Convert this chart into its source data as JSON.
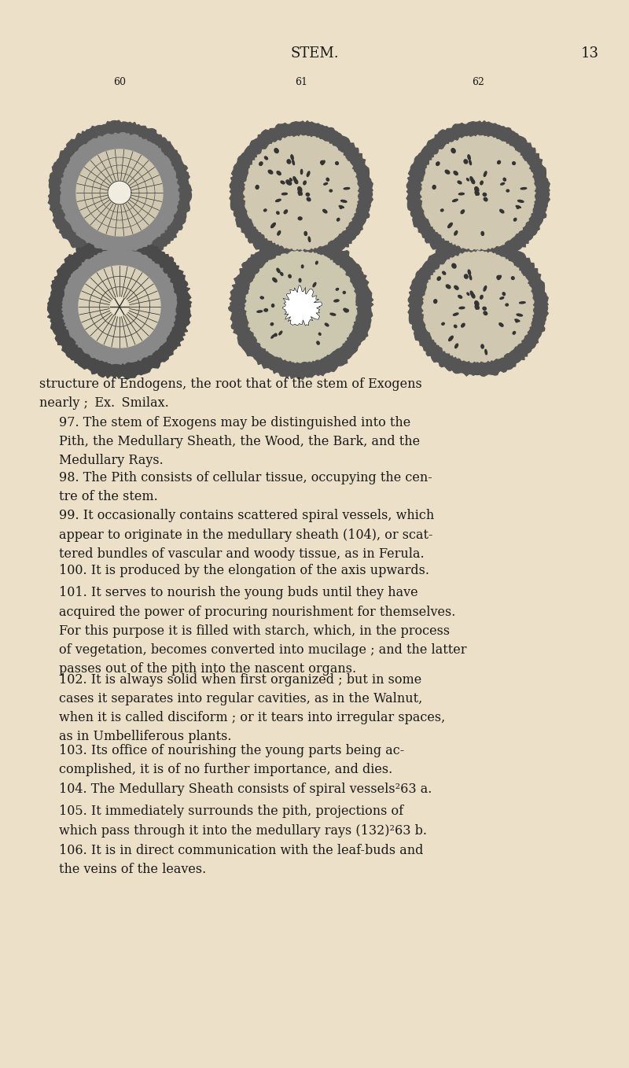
{
  "bg_color": "#EDE0C8",
  "page_title": "STEM.",
  "page_number": "13",
  "title_fontsize": 13,
  "fig_labels": [
    "60",
    "61",
    "62"
  ],
  "text_color": "#1a1a1a",
  "body_text": [
    {
      "indent": false,
      "text": "structure of Endogens, the root that of the stem of Exogens\nnearly ; Ex. Smilax."
    },
    {
      "indent": true,
      "text": "97. The stem of Exogens may be distinguished into the\nPith, the Medullary Sheath, the Wood, the Bark, and the\nMedullary Rays."
    },
    {
      "indent": true,
      "text": "98. The Pith consists of cellular tissue, occupying the cen-\ntre of the stem."
    },
    {
      "indent": true,
      "text": "99. It occasionally contains scattered spiral vessels, which\nappear to originate in the medullary sheath (104), or scat-\ntered bundles of vascular and woody tissue, as in Ferula."
    },
    {
      "indent": true,
      "text": "100. It is produced by the elongation of the axis upwards."
    },
    {
      "indent": true,
      "text": "101. It serves to nourish the young buds until they have\nacquired the power of procuring nourishment for themselves.\nFor this purpose it is filled with starch, which, in the process\nof vegetation, becomes converted into mucilage ; and the latter\npasses out of the pith into the nascent organs."
    },
    {
      "indent": true,
      "text": "102. It is always solid when first organized ; but in some\ncases it separates into regular cavities, as in the Walnut,\nwhen it is called disciform ; or it tears into irregular spaces,\nas in Umbelliferous plants."
    },
    {
      "indent": true,
      "text": "103. Its office of nourishing the young parts being ac-\ncomplished, it is of no further importance, and dies."
    },
    {
      "indent": true,
      "text": "104. The Medullary Sheath consists of spiral vessels²63 a."
    },
    {
      "indent": true,
      "text": "105. It immediately surrounds the pith, projections of\nwhich pass through it into the medullary rays (132)²63 b."
    },
    {
      "indent": true,
      "text": "106. It is in direct communication with the leaf-buds and\nthe veins of the leaves."
    }
  ],
  "italic_words_102": "disciform",
  "small_caps_97": [
    "Exogens"
  ],
  "small_caps_98": [
    "Pith"
  ],
  "small_caps_104": [
    "Medullary Sheath"
  ]
}
